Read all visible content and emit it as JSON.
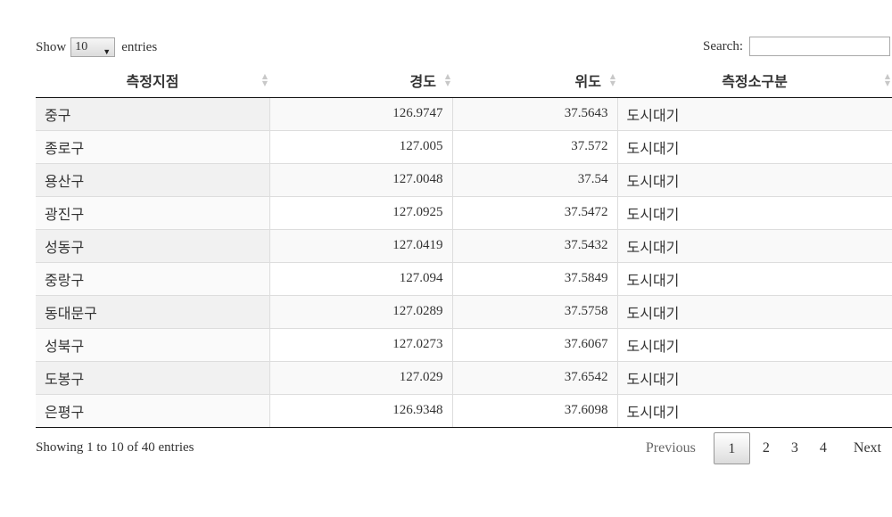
{
  "length": {
    "show_label": "Show",
    "selected": "10",
    "entries_label": "entries"
  },
  "search": {
    "label": "Search:",
    "value": ""
  },
  "columns": [
    "측정지점",
    "경도",
    "위도",
    "측정소구분"
  ],
  "rows": [
    [
      "중구",
      "126.9747",
      "37.5643",
      "도시대기"
    ],
    [
      "종로구",
      "127.005",
      "37.572",
      "도시대기"
    ],
    [
      "용산구",
      "127.0048",
      "37.54",
      "도시대기"
    ],
    [
      "광진구",
      "127.0925",
      "37.5472",
      "도시대기"
    ],
    [
      "성동구",
      "127.0419",
      "37.5432",
      "도시대기"
    ],
    [
      "중랑구",
      "127.094",
      "37.5849",
      "도시대기"
    ],
    [
      "동대문구",
      "127.0289",
      "37.5758",
      "도시대기"
    ],
    [
      "성북구",
      "127.0273",
      "37.6067",
      "도시대기"
    ],
    [
      "도봉구",
      "127.029",
      "37.6542",
      "도시대기"
    ],
    [
      "은평구",
      "126.9348",
      "37.6098",
      "도시대기"
    ]
  ],
  "info": "Showing 1 to 10 of 40 entries",
  "pagination": {
    "previous": "Previous",
    "pages": [
      "1",
      "2",
      "3",
      "4"
    ],
    "current": "1",
    "next": "Next"
  }
}
